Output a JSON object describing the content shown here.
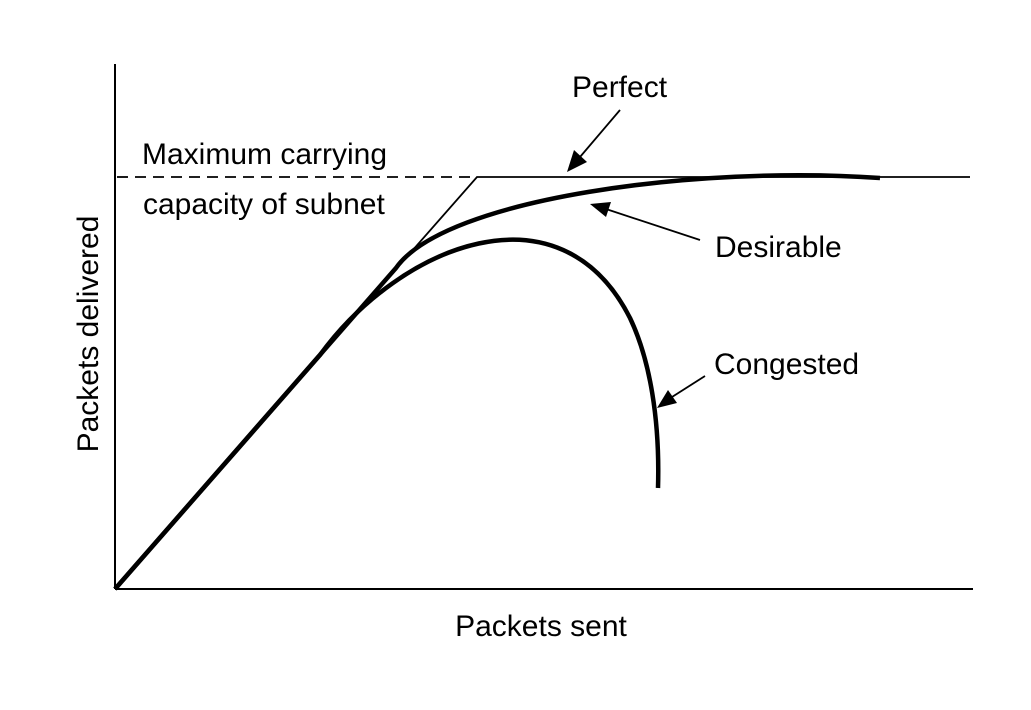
{
  "chart_data": {
    "type": "line",
    "xlabel": "Packets sent",
    "ylabel": "Packets delivered",
    "grid": false,
    "annotations": {
      "capacity_line1": "Maximum carrying",
      "capacity_line2": "capacity of subnet"
    },
    "series": [
      {
        "name": "Perfect"
      },
      {
        "name": "Desirable"
      },
      {
        "name": "Congested"
      }
    ]
  }
}
